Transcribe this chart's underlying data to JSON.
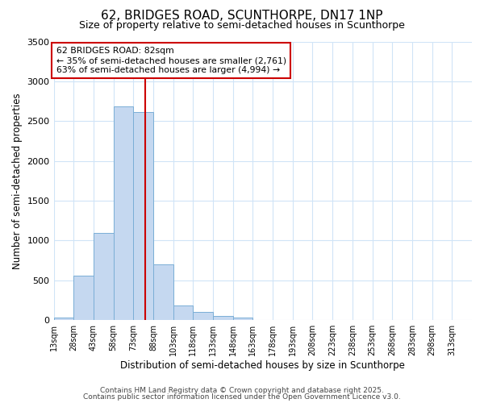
{
  "title": "62, BRIDGES ROAD, SCUNTHORPE, DN17 1NP",
  "subtitle": "Size of property relative to semi-detached houses in Scunthorpe",
  "xlabel": "Distribution of semi-detached houses by size in Scunthorpe",
  "ylabel": "Number of semi-detached properties",
  "bar_color": "#c5d8f0",
  "bar_edge_color": "#7aaed6",
  "property_value": 82,
  "annotation_title": "62 BRIDGES ROAD: 82sqm",
  "annotation_line1": "← 35% of semi-detached houses are smaller (2,761)",
  "annotation_line2": "63% of semi-detached houses are larger (4,994) →",
  "footer1": "Contains HM Land Registry data © Crown copyright and database right 2025.",
  "footer2": "Contains public sector information licensed under the Open Government Licence v3.0.",
  "red_line_color": "#cc0000",
  "annotation_box_edge": "#cc0000",
  "background_color": "#ffffff",
  "grid_color": "#d0e4f7",
  "bin_starts": [
    13,
    28,
    43,
    58,
    73,
    88,
    103,
    118,
    133,
    148,
    163,
    178,
    193,
    208,
    223,
    238,
    253,
    268,
    283,
    298,
    313
  ],
  "bin_width": 15,
  "bar_heights": [
    28,
    555,
    1100,
    2680,
    2610,
    700,
    185,
    100,
    50,
    30,
    5,
    3,
    0,
    0,
    0,
    0,
    0,
    0,
    0,
    0,
    0
  ],
  "ylim": [
    0,
    3500
  ],
  "yticks": [
    0,
    500,
    1000,
    1500,
    2000,
    2500,
    3000,
    3500
  ]
}
